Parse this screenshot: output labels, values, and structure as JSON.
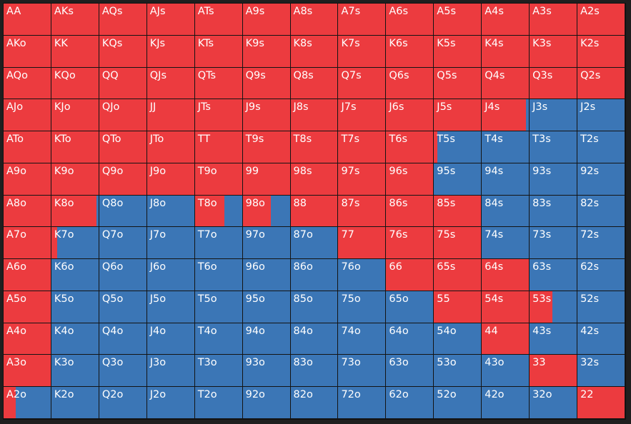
{
  "colors": {
    "raise": "#ec3b3f",
    "fold": "#3b76b6",
    "gridline": "#141414",
    "background": "#1f1f1f",
    "text": "#ffffff"
  },
  "rows": [
    [
      {
        "hand": "AA",
        "raise_pct": 100
      },
      {
        "hand": "AKs",
        "raise_pct": 100
      },
      {
        "hand": "AQs",
        "raise_pct": 100
      },
      {
        "hand": "AJs",
        "raise_pct": 100
      },
      {
        "hand": "ATs",
        "raise_pct": 100
      },
      {
        "hand": "A9s",
        "raise_pct": 100
      },
      {
        "hand": "A8s",
        "raise_pct": 100
      },
      {
        "hand": "A7s",
        "raise_pct": 100
      },
      {
        "hand": "A6s",
        "raise_pct": 100
      },
      {
        "hand": "A5s",
        "raise_pct": 100
      },
      {
        "hand": "A4s",
        "raise_pct": 100
      },
      {
        "hand": "A3s",
        "raise_pct": 100
      },
      {
        "hand": "A2s",
        "raise_pct": 100
      }
    ],
    [
      {
        "hand": "AKo",
        "raise_pct": 100
      },
      {
        "hand": "KK",
        "raise_pct": 100
      },
      {
        "hand": "KQs",
        "raise_pct": 100
      },
      {
        "hand": "KJs",
        "raise_pct": 100
      },
      {
        "hand": "KTs",
        "raise_pct": 100
      },
      {
        "hand": "K9s",
        "raise_pct": 100
      },
      {
        "hand": "K8s",
        "raise_pct": 100
      },
      {
        "hand": "K7s",
        "raise_pct": 100
      },
      {
        "hand": "K6s",
        "raise_pct": 100
      },
      {
        "hand": "K5s",
        "raise_pct": 100
      },
      {
        "hand": "K4s",
        "raise_pct": 100
      },
      {
        "hand": "K3s",
        "raise_pct": 100
      },
      {
        "hand": "K2s",
        "raise_pct": 100
      }
    ],
    [
      {
        "hand": "AQo",
        "raise_pct": 100
      },
      {
        "hand": "KQo",
        "raise_pct": 100
      },
      {
        "hand": "QQ",
        "raise_pct": 100
      },
      {
        "hand": "QJs",
        "raise_pct": 100
      },
      {
        "hand": "QTs",
        "raise_pct": 100
      },
      {
        "hand": "Q9s",
        "raise_pct": 100
      },
      {
        "hand": "Q8s",
        "raise_pct": 100
      },
      {
        "hand": "Q7s",
        "raise_pct": 100
      },
      {
        "hand": "Q6s",
        "raise_pct": 100
      },
      {
        "hand": "Q5s",
        "raise_pct": 100
      },
      {
        "hand": "Q4s",
        "raise_pct": 100
      },
      {
        "hand": "Q3s",
        "raise_pct": 100
      },
      {
        "hand": "Q2s",
        "raise_pct": 100
      }
    ],
    [
      {
        "hand": "AJo",
        "raise_pct": 100
      },
      {
        "hand": "KJo",
        "raise_pct": 100
      },
      {
        "hand": "QJo",
        "raise_pct": 100
      },
      {
        "hand": "JJ",
        "raise_pct": 100
      },
      {
        "hand": "JTs",
        "raise_pct": 100
      },
      {
        "hand": "J9s",
        "raise_pct": 100
      },
      {
        "hand": "J8s",
        "raise_pct": 100
      },
      {
        "hand": "J7s",
        "raise_pct": 100
      },
      {
        "hand": "J6s",
        "raise_pct": 100
      },
      {
        "hand": "J5s",
        "raise_pct": 100
      },
      {
        "hand": "J4s",
        "raise_pct": 93
      },
      {
        "hand": "J3s",
        "raise_pct": 0
      },
      {
        "hand": "J2s",
        "raise_pct": 0
      }
    ],
    [
      {
        "hand": "ATo",
        "raise_pct": 100
      },
      {
        "hand": "KTo",
        "raise_pct": 100
      },
      {
        "hand": "QTo",
        "raise_pct": 100
      },
      {
        "hand": "JTo",
        "raise_pct": 100
      },
      {
        "hand": "TT",
        "raise_pct": 100
      },
      {
        "hand": "T9s",
        "raise_pct": 100
      },
      {
        "hand": "T8s",
        "raise_pct": 100
      },
      {
        "hand": "T7s",
        "raise_pct": 100
      },
      {
        "hand": "T6s",
        "raise_pct": 100
      },
      {
        "hand": "T5s",
        "raise_pct": 7
      },
      {
        "hand": "T4s",
        "raise_pct": 0
      },
      {
        "hand": "T3s",
        "raise_pct": 0
      },
      {
        "hand": "T2s",
        "raise_pct": 0
      }
    ],
    [
      {
        "hand": "A9o",
        "raise_pct": 100
      },
      {
        "hand": "K9o",
        "raise_pct": 100
      },
      {
        "hand": "Q9o",
        "raise_pct": 100
      },
      {
        "hand": "J9o",
        "raise_pct": 100
      },
      {
        "hand": "T9o",
        "raise_pct": 100
      },
      {
        "hand": "99",
        "raise_pct": 100
      },
      {
        "hand": "98s",
        "raise_pct": 100
      },
      {
        "hand": "97s",
        "raise_pct": 100
      },
      {
        "hand": "96s",
        "raise_pct": 100
      },
      {
        "hand": "95s",
        "raise_pct": 0
      },
      {
        "hand": "94s",
        "raise_pct": 0
      },
      {
        "hand": "93s",
        "raise_pct": 0
      },
      {
        "hand": "92s",
        "raise_pct": 0
      }
    ],
    [
      {
        "hand": "A8o",
        "raise_pct": 100
      },
      {
        "hand": "K8o",
        "raise_pct": 95
      },
      {
        "hand": "Q8o",
        "raise_pct": 0
      },
      {
        "hand": "J8o",
        "raise_pct": 0
      },
      {
        "hand": "T8o",
        "raise_pct": 62
      },
      {
        "hand": "98o",
        "raise_pct": 60
      },
      {
        "hand": "88",
        "raise_pct": 100
      },
      {
        "hand": "87s",
        "raise_pct": 100
      },
      {
        "hand": "86s",
        "raise_pct": 100
      },
      {
        "hand": "85s",
        "raise_pct": 100
      },
      {
        "hand": "84s",
        "raise_pct": 0
      },
      {
        "hand": "83s",
        "raise_pct": 0
      },
      {
        "hand": "82s",
        "raise_pct": 0
      }
    ],
    [
      {
        "hand": "A7o",
        "raise_pct": 100
      },
      {
        "hand": "K7o",
        "raise_pct": 12
      },
      {
        "hand": "Q7o",
        "raise_pct": 0
      },
      {
        "hand": "J7o",
        "raise_pct": 0
      },
      {
        "hand": "T7o",
        "raise_pct": 0
      },
      {
        "hand": "97o",
        "raise_pct": 0
      },
      {
        "hand": "87o",
        "raise_pct": 0
      },
      {
        "hand": "77",
        "raise_pct": 100
      },
      {
        "hand": "76s",
        "raise_pct": 100
      },
      {
        "hand": "75s",
        "raise_pct": 100
      },
      {
        "hand": "74s",
        "raise_pct": 0
      },
      {
        "hand": "73s",
        "raise_pct": 0
      },
      {
        "hand": "72s",
        "raise_pct": 0
      }
    ],
    [
      {
        "hand": "A6o",
        "raise_pct": 100
      },
      {
        "hand": "K6o",
        "raise_pct": 0
      },
      {
        "hand": "Q6o",
        "raise_pct": 0
      },
      {
        "hand": "J6o",
        "raise_pct": 0
      },
      {
        "hand": "T6o",
        "raise_pct": 0
      },
      {
        "hand": "96o",
        "raise_pct": 0
      },
      {
        "hand": "86o",
        "raise_pct": 0
      },
      {
        "hand": "76o",
        "raise_pct": 0
      },
      {
        "hand": "66",
        "raise_pct": 100
      },
      {
        "hand": "65s",
        "raise_pct": 100
      },
      {
        "hand": "64s",
        "raise_pct": 100
      },
      {
        "hand": "63s",
        "raise_pct": 0
      },
      {
        "hand": "62s",
        "raise_pct": 0
      }
    ],
    [
      {
        "hand": "A5o",
        "raise_pct": 100
      },
      {
        "hand": "K5o",
        "raise_pct": 0
      },
      {
        "hand": "Q5o",
        "raise_pct": 0
      },
      {
        "hand": "J5o",
        "raise_pct": 0
      },
      {
        "hand": "T5o",
        "raise_pct": 0
      },
      {
        "hand": "95o",
        "raise_pct": 0
      },
      {
        "hand": "85o",
        "raise_pct": 0
      },
      {
        "hand": "75o",
        "raise_pct": 0
      },
      {
        "hand": "65o",
        "raise_pct": 0
      },
      {
        "hand": "55",
        "raise_pct": 100
      },
      {
        "hand": "54s",
        "raise_pct": 100
      },
      {
        "hand": "53s",
        "raise_pct": 48
      },
      {
        "hand": "52s",
        "raise_pct": 0
      }
    ],
    [
      {
        "hand": "A4o",
        "raise_pct": 100
      },
      {
        "hand": "K4o",
        "raise_pct": 0
      },
      {
        "hand": "Q4o",
        "raise_pct": 0
      },
      {
        "hand": "J4o",
        "raise_pct": 0
      },
      {
        "hand": "T4o",
        "raise_pct": 0
      },
      {
        "hand": "94o",
        "raise_pct": 0
      },
      {
        "hand": "84o",
        "raise_pct": 0
      },
      {
        "hand": "74o",
        "raise_pct": 0
      },
      {
        "hand": "64o",
        "raise_pct": 0
      },
      {
        "hand": "54o",
        "raise_pct": 0
      },
      {
        "hand": "44",
        "raise_pct": 100
      },
      {
        "hand": "43s",
        "raise_pct": 0
      },
      {
        "hand": "42s",
        "raise_pct": 0
      }
    ],
    [
      {
        "hand": "A3o",
        "raise_pct": 100
      },
      {
        "hand": "K3o",
        "raise_pct": 0
      },
      {
        "hand": "Q3o",
        "raise_pct": 0
      },
      {
        "hand": "J3o",
        "raise_pct": 0
      },
      {
        "hand": "T3o",
        "raise_pct": 0
      },
      {
        "hand": "93o",
        "raise_pct": 0
      },
      {
        "hand": "83o",
        "raise_pct": 0
      },
      {
        "hand": "73o",
        "raise_pct": 0
      },
      {
        "hand": "63o",
        "raise_pct": 0
      },
      {
        "hand": "53o",
        "raise_pct": 0
      },
      {
        "hand": "43o",
        "raise_pct": 0
      },
      {
        "hand": "33",
        "raise_pct": 100
      },
      {
        "hand": "32s",
        "raise_pct": 0
      }
    ],
    [
      {
        "hand": "A2o",
        "raise_pct": 26
      },
      {
        "hand": "K2o",
        "raise_pct": 0
      },
      {
        "hand": "Q2o",
        "raise_pct": 0
      },
      {
        "hand": "J2o",
        "raise_pct": 0
      },
      {
        "hand": "T2o",
        "raise_pct": 0
      },
      {
        "hand": "92o",
        "raise_pct": 0
      },
      {
        "hand": "82o",
        "raise_pct": 0
      },
      {
        "hand": "72o",
        "raise_pct": 0
      },
      {
        "hand": "62o",
        "raise_pct": 0
      },
      {
        "hand": "52o",
        "raise_pct": 0
      },
      {
        "hand": "42o",
        "raise_pct": 0
      },
      {
        "hand": "32o",
        "raise_pct": 0
      },
      {
        "hand": "22",
        "raise_pct": 100
      }
    ]
  ]
}
